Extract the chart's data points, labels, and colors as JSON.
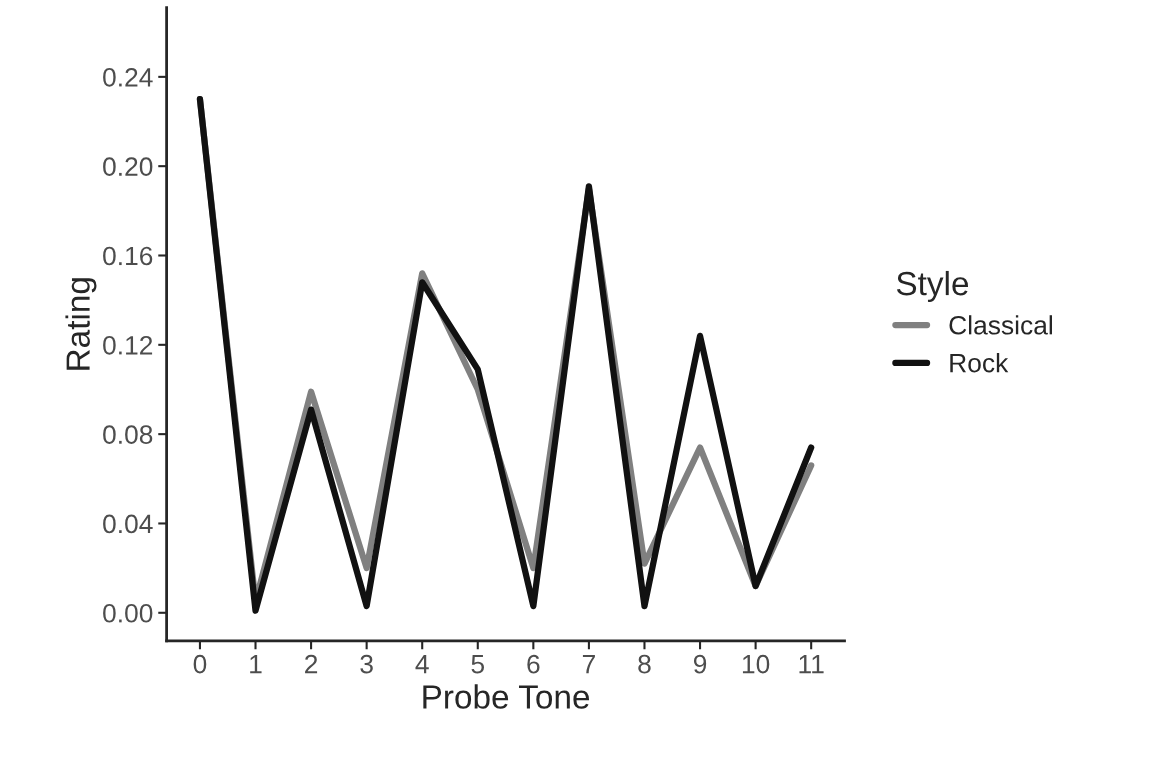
{
  "chart_data": {
    "type": "line",
    "xlabel": "Probe Tone",
    "ylabel": "Rating",
    "legend_title": "Style",
    "x": [
      0,
      1,
      2,
      3,
      4,
      5,
      6,
      7,
      8,
      9,
      10,
      11
    ],
    "series": [
      {
        "name": "Classical",
        "color": "#808080",
        "values": [
          0.23,
          0.005,
          0.099,
          0.02,
          0.152,
          0.1,
          0.02,
          0.19,
          0.022,
          0.074,
          0.012,
          0.066
        ]
      },
      {
        "name": "Rock",
        "color": "#111111",
        "values": [
          0.23,
          0.001,
          0.091,
          0.003,
          0.148,
          0.109,
          0.003,
          0.191,
          0.003,
          0.124,
          0.012,
          0.074
        ]
      }
    ],
    "xlim": [
      -0.6,
      11.6
    ],
    "xticks": [
      0,
      1,
      2,
      3,
      4,
      5,
      6,
      7,
      8,
      9,
      10,
      11
    ],
    "ylim": [
      -0.0126,
      0.271
    ],
    "yticks": [
      {
        "value": 0,
        "label": "0.00"
      },
      {
        "value": 0.04,
        "label": "0.04"
      },
      {
        "value": 0.08,
        "label": "0.08"
      },
      {
        "value": 0.12,
        "label": "0.12"
      },
      {
        "value": 0.16,
        "label": "0.16"
      },
      {
        "value": 0.2,
        "label": "0.20"
      },
      {
        "value": 0.24,
        "label": "0.24"
      }
    ],
    "grid": false,
    "legend": "right",
    "marker": "none",
    "line_style": "solid"
  }
}
